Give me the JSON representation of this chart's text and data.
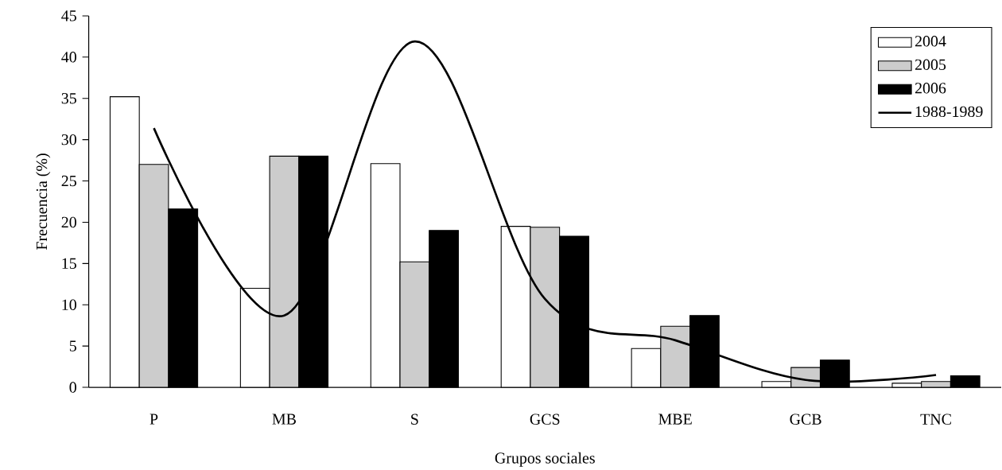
{
  "chart_data": {
    "type": "bar",
    "xlabel": "Grupos sociales",
    "ylabel": "Frecuencia (%)",
    "categories": [
      "P",
      "MB",
      "S",
      "GCS",
      "MBE",
      "GCB",
      "TNC"
    ],
    "series": [
      {
        "name": "2004",
        "color": "#ffffff",
        "values": [
          35.2,
          12.0,
          27.1,
          19.5,
          4.7,
          0.7,
          0.5
        ]
      },
      {
        "name": "2005",
        "color": "#cccccc",
        "values": [
          27.0,
          28.0,
          15.2,
          19.4,
          7.4,
          2.4,
          0.7
        ]
      },
      {
        "name": "2006",
        "color": "#000000",
        "values": [
          21.6,
          28.0,
          19.0,
          18.3,
          8.7,
          3.3,
          1.4
        ]
      },
      {
        "name": "1988-1989",
        "type": "line",
        "color": "#000000",
        "values": [
          31.4,
          8.7,
          41.9,
          10.7,
          5.7,
          0.9,
          1.5
        ]
      }
    ],
    "ylim": [
      0,
      45
    ],
    "yticks": [
      0,
      5,
      10,
      15,
      20,
      25,
      30,
      35,
      40,
      45
    ],
    "legend": "top right",
    "grid": false,
    "marker": "none"
  }
}
